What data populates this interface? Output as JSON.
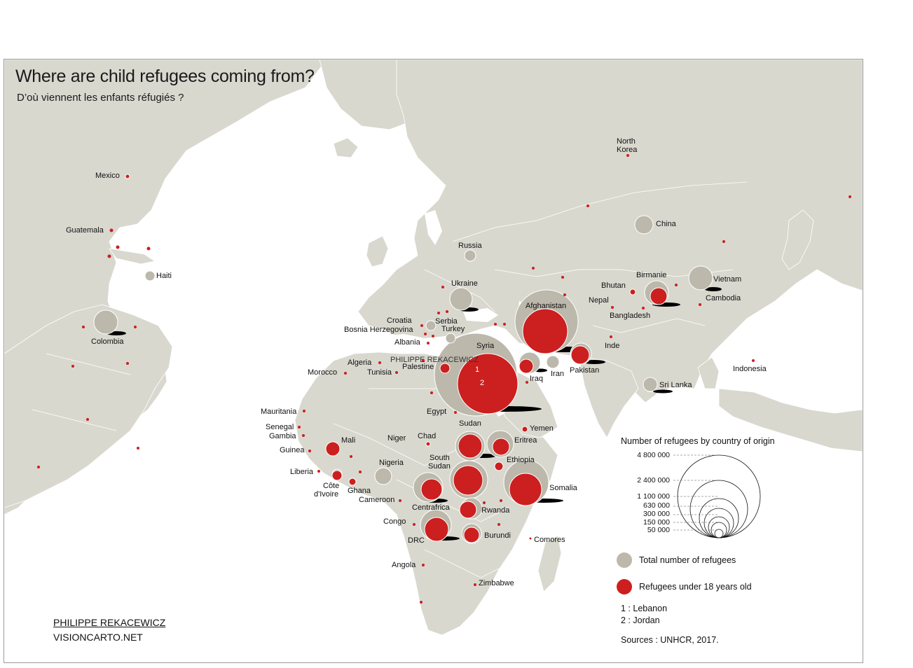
{
  "title": "Where are child refugees coming from?",
  "subtitle": "D’où viennent les enfants réfugiés ?",
  "credits": {
    "author": "PHILIPPE REKACEWICZ",
    "site": "VISIONCARTO.NET"
  },
  "watermark": "PHILIPPE REKACEWICZ",
  "legend": {
    "title": "Number of refugees by country of origin",
    "scale_values": [
      "4 800 000",
      "2 400 000",
      "1 100 000",
      "630 000",
      "300 000",
      "150 000",
      "50 000"
    ],
    "total_label": "Total number of refugees",
    "under18_label": "Refugees under 18 years old",
    "notes": [
      "1 : Lebanon",
      "2 : Jordan"
    ],
    "sources": "Sources : UNHCR, 2017."
  },
  "colors": {
    "land": "#d9d8cf",
    "ocean": "#ffffff",
    "total": "#bcb8ab",
    "under18": "#cc1f1f",
    "border": "#ffffff"
  },
  "countries": [
    {
      "name": "Mexico"
    },
    {
      "name": "Guatemala"
    },
    {
      "name": "Haiti"
    },
    {
      "name": "Colombia"
    },
    {
      "name": "Russia"
    },
    {
      "name": "Ukraine"
    },
    {
      "name": "Croatia"
    },
    {
      "name": "Serbia"
    },
    {
      "name": "Bosnia Herzegovina"
    },
    {
      "name": "Turkey"
    },
    {
      "name": "Albania"
    },
    {
      "name": "Syria"
    },
    {
      "name": "Algeria"
    },
    {
      "name": "Palestine"
    },
    {
      "name": "Morocco"
    },
    {
      "name": "Tunisia"
    },
    {
      "name": "Iraq"
    },
    {
      "name": "Iran"
    },
    {
      "name": "Afghanistan"
    },
    {
      "name": "Pakistan"
    },
    {
      "name": "Egypt"
    },
    {
      "name": "Mauritania"
    },
    {
      "name": "Senegal"
    },
    {
      "name": "Gambia"
    },
    {
      "name": "Guinea"
    },
    {
      "name": "Liberia"
    },
    {
      "name": "Côte"
    },
    {
      "name": "d'Ivoire"
    },
    {
      "name": "Mali"
    },
    {
      "name": "Niger"
    },
    {
      "name": "Chad"
    },
    {
      "name": "Nigeria"
    },
    {
      "name": "Ghana"
    },
    {
      "name": "Cameroon"
    },
    {
      "name": "Sudan"
    },
    {
      "name": "Yemen"
    },
    {
      "name": "Eritrea"
    },
    {
      "name": "South"
    },
    {
      "name": "Sudan"
    },
    {
      "name": "Ethiopia"
    },
    {
      "name": "Somalia"
    },
    {
      "name": "Centrafrica"
    },
    {
      "name": "Rwanda"
    },
    {
      "name": "Congo"
    },
    {
      "name": "DRC"
    },
    {
      "name": "Burundi"
    },
    {
      "name": "Comores"
    },
    {
      "name": "Angola"
    },
    {
      "name": "Zimbabwe"
    },
    {
      "name": "North"
    },
    {
      "name": "Korea"
    },
    {
      "name": "China"
    },
    {
      "name": "Birmanie"
    },
    {
      "name": "Vietnam"
    },
    {
      "name": "Bhutan"
    },
    {
      "name": "Nepal"
    },
    {
      "name": "Cambodia"
    },
    {
      "name": "Bangladesh"
    },
    {
      "name": "Inde"
    },
    {
      "name": "Indonesia"
    },
    {
      "name": "Sri Lanka"
    }
  ],
  "markers": [
    "1",
    "2"
  ]
}
